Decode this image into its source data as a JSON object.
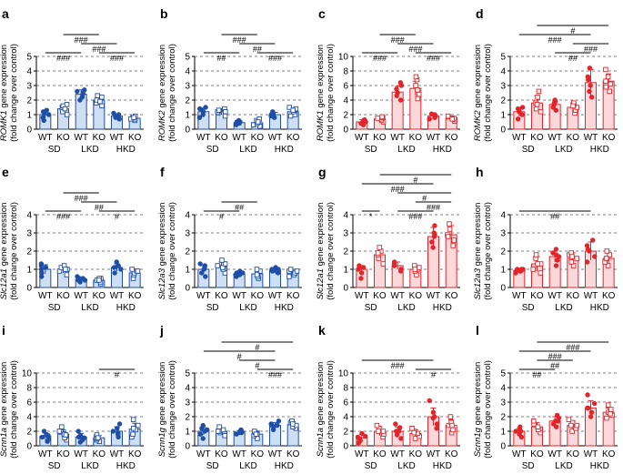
{
  "colors": {
    "blue": "#1f4ea6",
    "blue_fill": "#cfdff3",
    "red": "#e3242b",
    "red_fill": "#fbd9da",
    "axis": "#000000"
  },
  "group_labels": [
    "SD",
    "LKD",
    "HKD"
  ],
  "genotype_labels": [
    "WT",
    "KO",
    "WT",
    "KO",
    "WT",
    "KO"
  ],
  "ylabel_suffix": " gene expression",
  "ylabel_line2": "(fold change over control)",
  "chart_data": [
    {
      "panel": "a",
      "type": "bar",
      "color": "blue",
      "gene": "ROMK1",
      "ylim": [
        0,
        5
      ],
      "ticks": [
        0,
        1,
        2,
        3,
        4,
        5
      ],
      "means": [
        1.0,
        1.4,
        2.4,
        2.0,
        0.9,
        0.75
      ],
      "errors": [
        0.2,
        0.3,
        0.3,
        0.3,
        0.15,
        0.15
      ],
      "points": [
        [
          0.6,
          0.8,
          1.0,
          1.1,
          1.3,
          1.2
        ],
        [
          1.0,
          1.2,
          1.5,
          1.6,
          1.7,
          1.4
        ],
        [
          2.0,
          2.2,
          2.4,
          2.6,
          2.7,
          2.5
        ],
        [
          1.6,
          1.8,
          2.0,
          2.3,
          2.2,
          1.9
        ],
        [
          0.7,
          0.8,
          0.9,
          1.0,
          1.1,
          0.9
        ],
        [
          0.6,
          0.7,
          0.8,
          0.9,
          0.7,
          0.8
        ]
      ],
      "sig": [
        {
          "from": 0,
          "to": 2,
          "label": "###"
        },
        {
          "from": 2,
          "to": 4,
          "label": "###"
        },
        {
          "from": 1,
          "to": 3,
          "label": "###"
        },
        {
          "from": 3,
          "to": 5,
          "label": "###"
        }
      ]
    },
    {
      "panel": "b",
      "type": "bar",
      "color": "blue",
      "gene": "ROMK2",
      "ylim": [
        0,
        5
      ],
      "ticks": [
        0,
        1,
        2,
        3,
        4,
        5
      ],
      "means": [
        1.2,
        1.2,
        0.45,
        0.45,
        1.0,
        1.2
      ],
      "errors": [
        0.25,
        0.2,
        0.1,
        0.15,
        0.15,
        0.25
      ],
      "points": [
        [
          0.8,
          1.0,
          1.2,
          1.4,
          1.5,
          1.3
        ],
        [
          0.9,
          1.1,
          1.2,
          1.3,
          1.4,
          1.2
        ],
        [
          0.3,
          0.4,
          0.5,
          0.5,
          0.6,
          0.4
        ],
        [
          0.2,
          0.3,
          0.4,
          0.6,
          0.7,
          0.5
        ],
        [
          0.8,
          0.9,
          1.0,
          1.1,
          1.2,
          1.0
        ],
        [
          0.9,
          1.0,
          1.2,
          1.4,
          1.5,
          1.3
        ]
      ],
      "sig": [
        {
          "from": 0,
          "to": 2,
          "label": "##"
        },
        {
          "from": 2,
          "to": 4,
          "label": "##"
        },
        {
          "from": 1,
          "to": 3,
          "label": "###"
        },
        {
          "from": 3,
          "to": 5,
          "label": "###"
        }
      ]
    },
    {
      "panel": "c",
      "type": "bar",
      "color": "red",
      "gene": "ROMK1",
      "ylim": [
        0,
        10
      ],
      "ticks": [
        0,
        2,
        4,
        6,
        8,
        10
      ],
      "means": [
        1.0,
        1.4,
        5.1,
        5.6,
        1.8,
        1.5
      ],
      "errors": [
        0.3,
        0.3,
        0.8,
        1.0,
        0.3,
        0.3
      ],
      "points": [
        [
          0.6,
          0.9,
          1.0,
          1.2,
          1.3,
          0.8
        ],
        [
          1.0,
          1.2,
          1.4,
          1.6,
          1.7,
          1.5
        ],
        [
          4.0,
          4.6,
          5.0,
          5.5,
          6.0,
          6.4
        ],
        [
          4.2,
          4.8,
          5.4,
          6.0,
          6.8,
          7.2
        ],
        [
          1.4,
          1.6,
          1.8,
          2.0,
          2.1,
          1.9
        ],
        [
          1.1,
          1.3,
          1.5,
          1.7,
          1.8,
          1.4
        ]
      ],
      "sig": [
        {
          "from": 0,
          "to": 2,
          "label": "###"
        },
        {
          "from": 2,
          "to": 4,
          "label": "###"
        },
        {
          "from": 1,
          "to": 3,
          "label": "###"
        },
        {
          "from": 3,
          "to": 5,
          "label": "###"
        }
      ]
    },
    {
      "panel": "d",
      "type": "bar",
      "color": "red",
      "gene": "ROMK2",
      "ylim": [
        0,
        5
      ],
      "ticks": [
        0,
        1,
        2,
        3,
        4,
        5
      ],
      "means": [
        1.2,
        1.8,
        1.7,
        1.5,
        3.2,
        3.3
      ],
      "errors": [
        0.3,
        0.5,
        0.3,
        0.3,
        0.9,
        0.5
      ],
      "points": [
        [
          0.7,
          1.0,
          1.2,
          1.4,
          1.5,
          1.3
        ],
        [
          1.2,
          1.4,
          1.8,
          2.2,
          2.6,
          1.7
        ],
        [
          1.3,
          1.5,
          1.7,
          1.9,
          2.0,
          1.8
        ],
        [
          1.1,
          1.3,
          1.5,
          1.7,
          1.8,
          1.6
        ],
        [
          2.2,
          2.6,
          3.0,
          3.6,
          4.2,
          3.4
        ],
        [
          2.6,
          2.9,
          3.3,
          3.6,
          4.1,
          3.1
        ]
      ],
      "sig": [
        {
          "from": 0,
          "to": 4,
          "label": "###"
        },
        {
          "from": 1,
          "to": 5,
          "label": "#"
        },
        {
          "from": 2,
          "to": 4,
          "label": "##"
        },
        {
          "from": 3,
          "to": 5,
          "label": "###"
        }
      ]
    },
    {
      "panel": "e",
      "type": "bar",
      "color": "blue",
      "gene": "Slc12a1",
      "ylim": [
        0,
        4
      ],
      "ticks": [
        0,
        1,
        2,
        3,
        4
      ],
      "means": [
        1.0,
        1.0,
        0.45,
        0.4,
        1.1,
        0.8
      ],
      "errors": [
        0.25,
        0.2,
        0.1,
        0.1,
        0.2,
        0.2
      ],
      "points": [
        [
          0.6,
          0.8,
          1.0,
          1.2,
          1.3,
          1.1
        ],
        [
          0.7,
          0.9,
          1.0,
          1.1,
          1.2,
          1.0
        ],
        [
          0.3,
          0.4,
          0.5,
          0.5,
          0.6,
          0.4
        ],
        [
          0.2,
          0.3,
          0.4,
          0.5,
          0.5,
          0.4
        ],
        [
          0.8,
          1.0,
          1.1,
          1.2,
          1.4,
          1.2
        ],
        [
          0.5,
          0.7,
          0.8,
          0.9,
          1.0,
          0.9
        ]
      ],
      "sig": [
        {
          "from": 0,
          "to": 2,
          "label": "###"
        },
        {
          "from": 2,
          "to": 4,
          "label": "##"
        },
        {
          "from": 1,
          "to": 3,
          "label": "###"
        },
        {
          "from": 3,
          "to": 5,
          "label": "#"
        }
      ]
    },
    {
      "panel": "f",
      "type": "bar",
      "color": "blue",
      "gene": "Slc12a3",
      "ylim": [
        0,
        4
      ],
      "ticks": [
        0,
        1,
        2,
        3,
        4
      ],
      "means": [
        1.0,
        1.15,
        0.75,
        0.75,
        0.95,
        0.85
      ],
      "errors": [
        0.2,
        0.25,
        0.1,
        0.15,
        0.1,
        0.15
      ],
      "points": [
        [
          0.6,
          0.8,
          1.0,
          1.2,
          1.3,
          1.1
        ],
        [
          0.8,
          1.0,
          1.1,
          1.3,
          1.5,
          1.2
        ],
        [
          0.6,
          0.7,
          0.8,
          0.8,
          0.9,
          0.7
        ],
        [
          0.5,
          0.6,
          0.8,
          0.9,
          1.0,
          0.7
        ],
        [
          0.8,
          0.9,
          1.0,
          1.0,
          1.1,
          0.9
        ],
        [
          0.6,
          0.7,
          0.8,
          0.9,
          1.0,
          0.9
        ]
      ],
      "sig": [
        {
          "from": 0,
          "to": 2,
          "label": "#"
        },
        {
          "from": 1,
          "to": 3,
          "label": "##"
        }
      ]
    },
    {
      "panel": "g",
      "type": "bar",
      "color": "red",
      "gene": "Slc12a1",
      "ylim": [
        0,
        4
      ],
      "ticks": [
        0,
        1,
        2,
        3,
        4
      ],
      "means": [
        1.0,
        1.8,
        1.2,
        1.0,
        2.8,
        2.9
      ],
      "errors": [
        0.2,
        0.3,
        0.2,
        0.2,
        0.5,
        0.5
      ],
      "points": [
        [
          0.5,
          0.8,
          1.0,
          1.1,
          1.2,
          1.1
        ],
        [
          1.3,
          1.6,
          1.8,
          2.0,
          2.2,
          1.9
        ],
        [
          0.9,
          1.0,
          1.2,
          1.3,
          1.4,
          1.2
        ],
        [
          0.7,
          0.9,
          1.0,
          1.1,
          1.2,
          1.0
        ],
        [
          2.2,
          2.5,
          2.8,
          3.0,
          3.4,
          2.9
        ],
        [
          2.3,
          2.6,
          2.9,
          3.2,
          3.5,
          2.8
        ]
      ],
      "sig": [
        {
          "from": 0,
          "to": 1,
          "label": "*"
        },
        {
          "from": 2,
          "to": 4,
          "label": "###"
        },
        {
          "from": 3,
          "to": 5,
          "label": "###"
        },
        {
          "from": 2,
          "to": 5,
          "label": "#"
        },
        {
          "from": 0,
          "to": 4,
          "label": "###"
        },
        {
          "from": 1,
          "to": 5,
          "label": "#"
        }
      ]
    },
    {
      "panel": "h",
      "type": "bar",
      "color": "red",
      "gene": "Slc12a3",
      "ylim": [
        0,
        4
      ],
      "ticks": [
        0,
        1,
        2,
        3,
        4
      ],
      "means": [
        0.95,
        1.3,
        1.7,
        1.6,
        2.0,
        1.6
      ],
      "errors": [
        0.1,
        0.4,
        0.3,
        0.3,
        0.5,
        0.3
      ],
      "points": [
        [
          0.8,
          0.9,
          0.9,
          1.0,
          1.0,
          1.0
        ],
        [
          0.8,
          1.0,
          1.3,
          1.6,
          1.8,
          1.3
        ],
        [
          1.2,
          1.5,
          1.7,
          1.9,
          2.1,
          1.8
        ],
        [
          1.2,
          1.4,
          1.6,
          1.8,
          1.9,
          1.7
        ],
        [
          1.4,
          1.7,
          2.0,
          2.3,
          2.6,
          2.1
        ],
        [
          1.2,
          1.4,
          1.6,
          1.8,
          2.0,
          1.6
        ]
      ],
      "sig": [
        {
          "from": 0,
          "to": 4,
          "label": "##"
        }
      ]
    },
    {
      "panel": "i",
      "type": "bar",
      "color": "blue",
      "gene": "Scnn1a",
      "ylim": [
        0,
        10
      ],
      "ticks": [
        0,
        2,
        4,
        6,
        8,
        10
      ],
      "means": [
        1.3,
        1.6,
        1.2,
        1.1,
        2.0,
        2.3
      ],
      "errors": [
        0.5,
        0.6,
        0.5,
        0.3,
        0.6,
        0.8
      ],
      "points": [
        [
          0.6,
          0.9,
          1.2,
          1.5,
          2.0,
          1.4
        ],
        [
          0.8,
          1.1,
          1.6,
          2.0,
          2.6,
          1.5
        ],
        [
          0.5,
          0.8,
          1.1,
          1.4,
          2.0,
          1.2
        ],
        [
          0.6,
          0.8,
          1.0,
          1.2,
          1.5,
          1.1
        ],
        [
          1.2,
          1.6,
          2.0,
          2.4,
          3.0,
          1.8
        ],
        [
          1.2,
          1.6,
          2.2,
          2.8,
          3.6,
          2.4
        ]
      ],
      "sig": [
        {
          "from": 3,
          "to": 5,
          "label": "#"
        }
      ]
    },
    {
      "panel": "j",
      "type": "bar",
      "color": "blue",
      "gene": "Scnn1g",
      "ylim": [
        0,
        5
      ],
      "ticks": [
        0,
        1,
        2,
        3,
        4,
        5
      ],
      "means": [
        1.0,
        1.0,
        0.95,
        0.8,
        1.4,
        1.45
      ],
      "errors": [
        0.25,
        0.2,
        0.1,
        0.2,
        0.2,
        0.2
      ],
      "points": [
        [
          0.5,
          0.8,
          1.0,
          1.2,
          1.4,
          1.1
        ],
        [
          0.7,
          0.9,
          1.0,
          1.1,
          1.3,
          1.0
        ],
        [
          0.8,
          0.9,
          0.9,
          1.0,
          1.1,
          1.0
        ],
        [
          0.5,
          0.7,
          0.8,
          0.9,
          1.0,
          0.8
        ],
        [
          1.1,
          1.3,
          1.4,
          1.5,
          1.7,
          1.4
        ],
        [
          1.2,
          1.3,
          1.4,
          1.6,
          1.7,
          1.5
        ]
      ],
      "sig": [
        {
          "from": 0,
          "to": 4,
          "label": "#"
        },
        {
          "from": 1,
          "to": 5,
          "label": "#"
        },
        {
          "from": 3,
          "to": 5,
          "label": "###"
        },
        {
          "from": 2,
          "to": 4,
          "label": "#"
        }
      ]
    },
    {
      "panel": "k",
      "type": "bar",
      "color": "red",
      "gene": "Scnn1a",
      "ylim": [
        0,
        10
      ],
      "ticks": [
        0,
        2,
        4,
        6,
        8,
        10
      ],
      "means": [
        1.1,
        2.0,
        2.0,
        1.7,
        4.0,
        2.8
      ],
      "errors": [
        0.5,
        0.6,
        0.6,
        0.5,
        1.2,
        0.8
      ],
      "points": [
        [
          0.4,
          0.7,
          1.0,
          1.3,
          1.7,
          1.2
        ],
        [
          1.2,
          1.6,
          2.0,
          2.4,
          2.8,
          2.0
        ],
        [
          1.0,
          1.5,
          2.0,
          2.5,
          3.0,
          2.0
        ],
        [
          1.0,
          1.3,
          1.7,
          2.0,
          2.4,
          1.8
        ],
        [
          2.4,
          3.0,
          3.8,
          4.6,
          6.2,
          4.0
        ],
        [
          1.8,
          2.2,
          2.8,
          3.2,
          4.0,
          2.8
        ]
      ],
      "sig": [
        {
          "from": 0,
          "to": 4,
          "label": "###"
        },
        {
          "from": 3,
          "to": 5,
          "label": "#"
        }
      ]
    },
    {
      "panel": "l",
      "type": "bar",
      "color": "red",
      "gene": "Scnn1g",
      "ylim": [
        0,
        5
      ],
      "ticks": [
        0,
        1,
        2,
        3,
        4,
        5
      ],
      "means": [
        1.0,
        1.3,
        1.7,
        1.4,
        2.6,
        2.3
      ],
      "errors": [
        0.2,
        0.3,
        0.3,
        0.3,
        0.5,
        0.3
      ],
      "points": [
        [
          0.6,
          0.8,
          1.0,
          1.1,
          1.3,
          1.0
        ],
        [
          0.9,
          1.1,
          1.3,
          1.5,
          1.7,
          1.3
        ],
        [
          1.3,
          1.5,
          1.7,
          1.9,
          2.1,
          1.7
        ],
        [
          1.0,
          1.2,
          1.4,
          1.6,
          1.8,
          1.4
        ],
        [
          2.0,
          2.3,
          2.6,
          2.9,
          3.5,
          2.6
        ],
        [
          1.9,
          2.1,
          2.3,
          2.5,
          2.8,
          2.2
        ]
      ],
      "sig": [
        {
          "from": 0,
          "to": 2,
          "label": "##"
        },
        {
          "from": 1,
          "to": 3,
          "label": "##"
        },
        {
          "from": 0,
          "to": 4,
          "label": "###"
        },
        {
          "from": 1,
          "to": 5,
          "label": "###"
        }
      ]
    }
  ]
}
